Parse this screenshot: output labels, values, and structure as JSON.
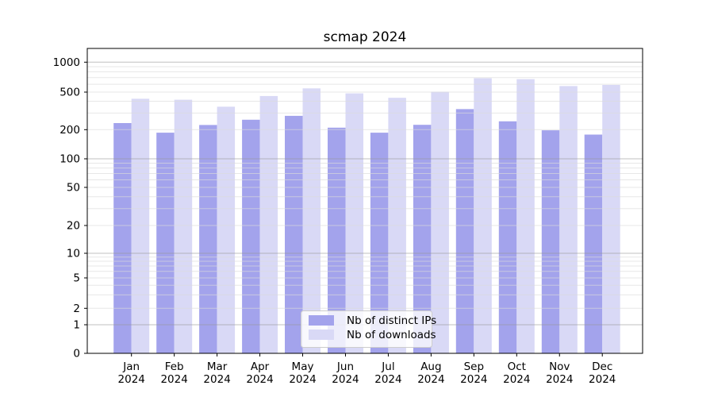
{
  "chart_data": {
    "type": "bar",
    "title": "scmap 2024",
    "categories": [
      "Jan\n2024",
      "Feb\n2024",
      "Mar\n2024",
      "Apr\n2024",
      "May\n2024",
      "Jun\n2024",
      "Jul\n2024",
      "Aug\n2024",
      "Sep\n2024",
      "Oct\n2024",
      "Nov\n2024",
      "Dec\n2024"
    ],
    "series": [
      {
        "name": "Nb of distinct IPs",
        "color": "#a3a3ec",
        "values": [
          235,
          186,
          224,
          255,
          280,
          210,
          186,
          225,
          330,
          245,
          197,
          178
        ]
      },
      {
        "name": "Nb of downloads",
        "color": "#d9d9f6",
        "values": [
          425,
          415,
          350,
          455,
          545,
          485,
          435,
          505,
          690,
          675,
          575,
          590
        ]
      }
    ],
    "yscale": "symlog",
    "yticks": [
      0,
      1,
      2,
      5,
      10,
      20,
      50,
      100,
      200,
      500,
      1000
    ],
    "ytick_labels": [
      "0",
      "1",
      "2",
      "5",
      "10",
      "20",
      "50",
      "100",
      "200",
      "500",
      "1000"
    ],
    "ylim": [
      0,
      1400
    ],
    "xlabel": "",
    "ylabel": "",
    "grid": "minor+major horizontal, drawn over bars",
    "legend_position": "lower center inside axes"
  },
  "colors": {
    "bar_dark": "#a3a3ec",
    "bar_light": "#d9d9f6",
    "spine": "#000000",
    "grid_major": "#969696",
    "grid_minor": "#dadada",
    "legend_border": "#cccccc",
    "legend_bg": "#ffffff"
  }
}
